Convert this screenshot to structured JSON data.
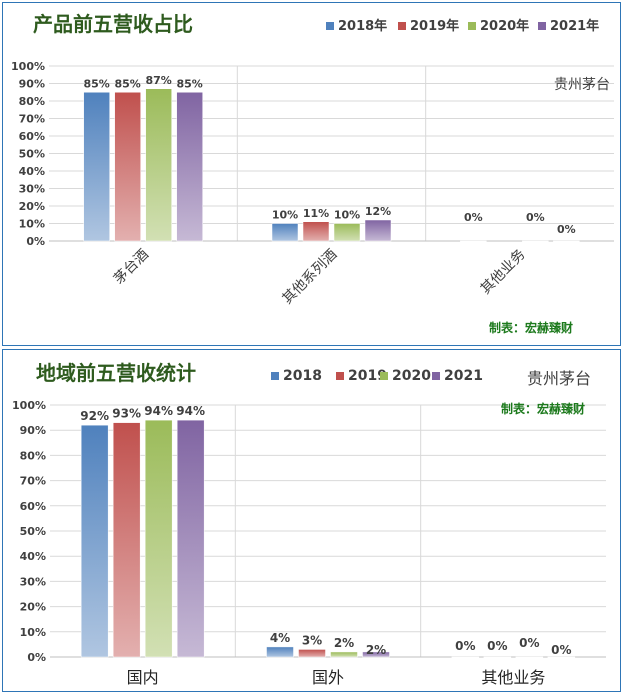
{
  "chart_data": [
    {
      "type": "bar",
      "title": "产品前五营收占比",
      "company": "贵州茅台",
      "credit": "制表：宏赫臻财",
      "categories": [
        "茅台酒",
        "其他系列酒",
        "其他业务"
      ],
      "series": [
        {
          "name": "2018年",
          "values": [
            85,
            10,
            0
          ]
        },
        {
          "name": "2019年",
          "values": [
            85,
            11,
            null
          ]
        },
        {
          "name": "2020年",
          "values": [
            87,
            10,
            0
          ]
        },
        {
          "name": "2021年",
          "values": [
            85,
            12,
            0
          ]
        }
      ],
      "data_labels": [
        [
          "85%",
          "10%",
          "0%"
        ],
        [
          "85%",
          "11%",
          ""
        ],
        [
          "87%",
          "10%",
          "0%"
        ],
        [
          "85%",
          "12%",
          "0%"
        ]
      ],
      "yticks": [
        "0%",
        "10%",
        "20%",
        "30%",
        "40%",
        "50%",
        "60%",
        "70%",
        "80%",
        "90%",
        "100%"
      ],
      "ylim": [
        0,
        100
      ],
      "tick_label_rotation": "-45deg",
      "legend_position": "top-right",
      "grid": true,
      "colors": [
        "#4f81bd",
        "#c0504d",
        "#9bbb59",
        "#8064a2"
      ]
    },
    {
      "type": "bar",
      "title": "地域前五营收统计",
      "company": "贵州茅台",
      "credit": "制表：宏赫臻财",
      "categories": [
        "国内",
        "国外",
        "其他业务"
      ],
      "series": [
        {
          "name": "2018",
          "values": [
            92,
            4,
            0
          ]
        },
        {
          "name": "2019",
          "values": [
            93,
            3,
            0
          ]
        },
        {
          "name": "2020",
          "values": [
            94,
            2,
            0
          ]
        },
        {
          "name": "2021",
          "values": [
            94,
            2,
            0
          ]
        }
      ],
      "data_labels": [
        [
          "92%",
          "4%",
          "0%"
        ],
        [
          "93%",
          "3%",
          "0%"
        ],
        [
          "94%",
          "2%",
          "0%"
        ],
        [
          "94%",
          "2%",
          "0%"
        ]
      ],
      "yticks": [
        "0%",
        "10%",
        "20%",
        "30%",
        "40%",
        "50%",
        "60%",
        "70%",
        "80%",
        "90%",
        "100%"
      ],
      "ylim": [
        0,
        100
      ],
      "tick_label_rotation": "none",
      "legend_position": "top-center",
      "grid": true,
      "colors": [
        "#4f81bd",
        "#c0504d",
        "#9bbb59",
        "#8064a2"
      ]
    }
  ]
}
